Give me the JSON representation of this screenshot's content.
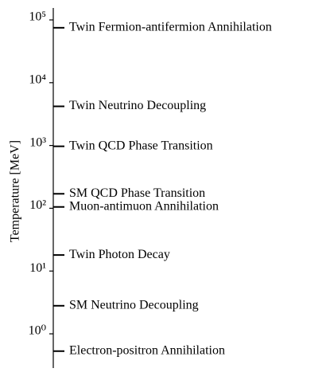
{
  "chart_data": {
    "type": "timeline",
    "ylabel": "Temperature [MeV]",
    "yscale": "log",
    "ylim": [
      0.285,
      155000
    ],
    "yticks": [
      {
        "value": 1,
        "label": "10⁰"
      },
      {
        "value": 10,
        "label": "10¹"
      },
      {
        "value": 100,
        "label": "10²"
      },
      {
        "value": 1000,
        "label": "10³"
      },
      {
        "value": 10000,
        "label": "10⁴"
      },
      {
        "value": 100000,
        "label": "10⁵"
      }
    ],
    "categories": [
      "Twin Fermion-antifermion Annihilation",
      "Twin Neutrino Decoupling",
      "Twin QCD Phase Transition",
      "SM QCD Phase Transition",
      "Muon-antimuon Annihilation",
      "Twin Photon Decay",
      "SM Neutrino Decoupling",
      "Electron-positron Annihilation"
    ],
    "values": [
      75000,
      4200,
      970,
      170,
      105,
      18,
      2.8,
      0.53
    ],
    "color": "#000000"
  }
}
